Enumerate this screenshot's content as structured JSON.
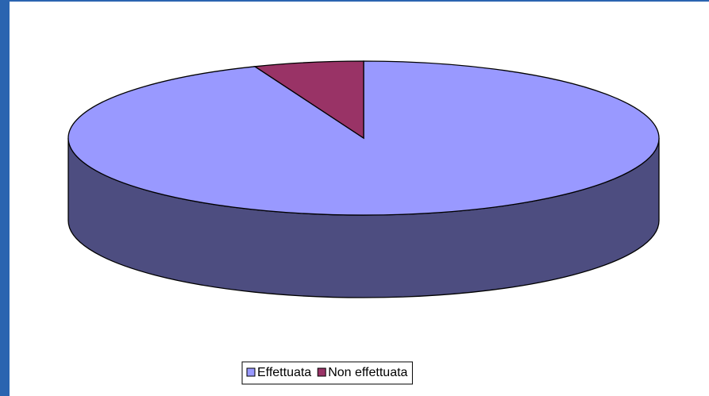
{
  "chart_data": {
    "type": "pie3d",
    "categories": [
      "Effettuata",
      "Non effettuata"
    ],
    "values": [
      94,
      6
    ],
    "colors": [
      "#9999ff",
      "#993366"
    ],
    "side_colors": [
      "#4d4d80",
      "#4d1a33"
    ],
    "legend": "bottom"
  }
}
